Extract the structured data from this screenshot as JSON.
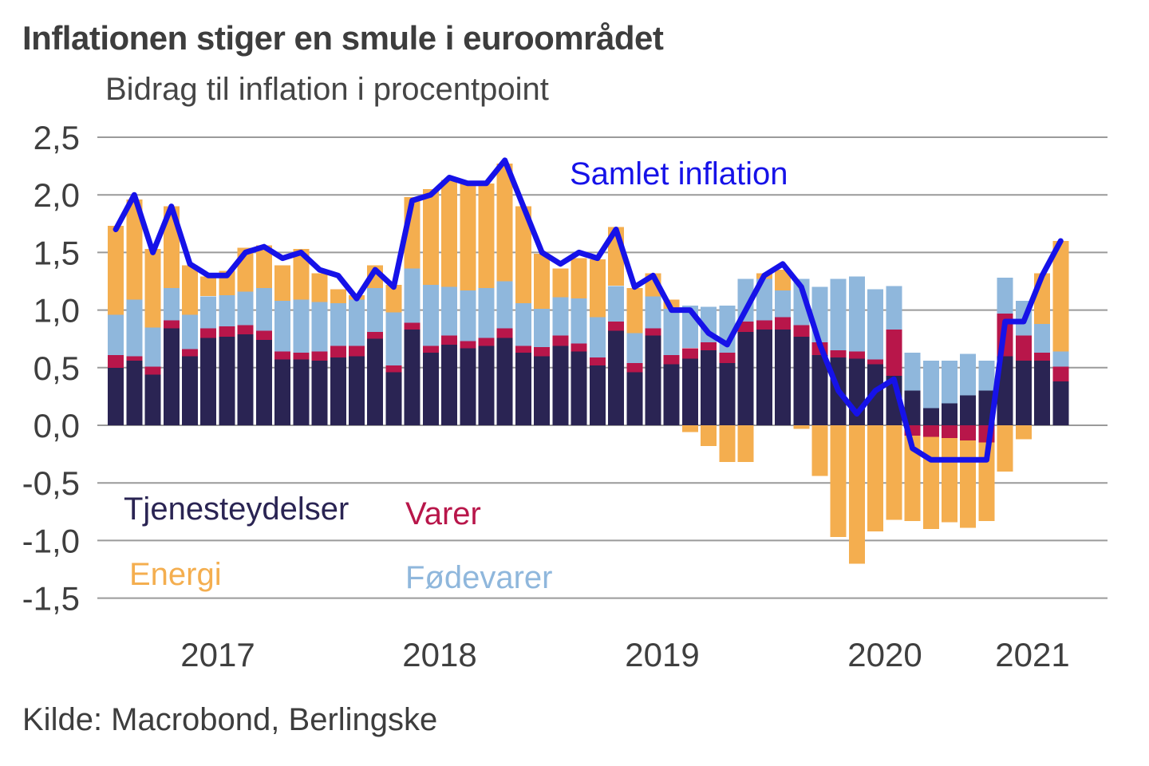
{
  "header": {
    "title": "Inflationen stiger en smule i euroområdet",
    "subtitle": "Bidrag til inflation i procentpoint"
  },
  "footer": {
    "source": "Kilde: Macrobond, Berlingske"
  },
  "legend": {
    "services": "Tjenesteydelser",
    "goods": "Varer",
    "energy": "Energi",
    "food": "Fødevarer"
  },
  "colors": {
    "services": "#2A2453",
    "goods": "#B8164A",
    "food": "#8FB7DC",
    "energy": "#F4AE4F",
    "total_line": "#1612E8",
    "grid": "#9A9A9A",
    "axis_text": "#3f3f3f",
    "background": "#ffffff"
  },
  "chart_data": {
    "type": "bar",
    "stacked": true,
    "title": "Inflationen stiger en smule i euroområdet",
    "subtitle": "Bidrag til inflation i procentpoint",
    "ylabel": "",
    "xlabel": "",
    "ylim": [
      -1.5,
      2.5
    ],
    "grid": true,
    "yticks": [
      2.5,
      2.0,
      1.5,
      1.0,
      0.5,
      0.0,
      -0.5,
      -1.0,
      -1.5
    ],
    "ytick_labels": [
      "2,5",
      "2,0",
      "1,5",
      "1,0",
      "0,5",
      "0,0",
      "-0,5",
      "-1,0",
      "-1,5"
    ],
    "year_labels": [
      "2017",
      "2018",
      "2019",
      "2020",
      "2021"
    ],
    "months": [
      "2017-01",
      "2017-02",
      "2017-03",
      "2017-04",
      "2017-05",
      "2017-06",
      "2017-07",
      "2017-08",
      "2017-09",
      "2017-10",
      "2017-11",
      "2017-12",
      "2018-01",
      "2018-02",
      "2018-03",
      "2018-04",
      "2018-05",
      "2018-06",
      "2018-07",
      "2018-08",
      "2018-09",
      "2018-10",
      "2018-11",
      "2018-12",
      "2019-01",
      "2019-02",
      "2019-03",
      "2019-04",
      "2019-05",
      "2019-06",
      "2019-07",
      "2019-08",
      "2019-09",
      "2019-10",
      "2019-11",
      "2019-12",
      "2020-01",
      "2020-02",
      "2020-03",
      "2020-04",
      "2020-05",
      "2020-06",
      "2020-07",
      "2020-08",
      "2020-09",
      "2020-10",
      "2020-11",
      "2020-12",
      "2021-01",
      "2021-02",
      "2021-03",
      "2021-04"
    ],
    "series": [
      {
        "name": "Tjenesteydelser",
        "key": "services",
        "color": "#2A2453",
        "values": [
          0.5,
          0.56,
          0.44,
          0.84,
          0.6,
          0.76,
          0.77,
          0.79,
          0.74,
          0.57,
          0.57,
          0.56,
          0.59,
          0.6,
          0.75,
          0.46,
          0.83,
          0.63,
          0.7,
          0.67,
          0.69,
          0.76,
          0.63,
          0.6,
          0.69,
          0.64,
          0.52,
          0.82,
          0.46,
          0.78,
          0.53,
          0.58,
          0.65,
          0.54,
          0.81,
          0.83,
          0.83,
          0.77,
          0.61,
          0.59,
          0.58,
          0.53,
          0.43,
          0.3,
          0.15,
          0.19,
          0.26,
          0.3,
          0.6,
          0.56,
          0.56,
          0.38
        ]
      },
      {
        "name": "Varer",
        "key": "goods",
        "color": "#B8164A",
        "values": [
          0.11,
          0.04,
          0.07,
          0.07,
          0.06,
          0.08,
          0.09,
          0.08,
          0.08,
          0.07,
          0.06,
          0.08,
          0.1,
          0.09,
          0.06,
          0.06,
          0.06,
          0.06,
          0.08,
          0.06,
          0.07,
          0.08,
          0.06,
          0.08,
          0.09,
          0.07,
          0.07,
          0.08,
          0.08,
          0.06,
          0.08,
          0.09,
          0.07,
          0.09,
          0.09,
          0.08,
          0.11,
          0.1,
          0.11,
          0.06,
          0.06,
          0.04,
          0.4,
          -0.09,
          -0.1,
          -0.11,
          -0.13,
          -0.15,
          0.37,
          0.22,
          0.07,
          0.13
        ]
      },
      {
        "name": "Fødevarer",
        "key": "food",
        "color": "#8FB7DC",
        "values": [
          0.35,
          0.49,
          0.34,
          0.28,
          0.3,
          0.28,
          0.27,
          0.29,
          0.37,
          0.44,
          0.46,
          0.43,
          0.37,
          0.4,
          0.38,
          0.46,
          0.47,
          0.53,
          0.42,
          0.44,
          0.43,
          0.41,
          0.37,
          0.33,
          0.33,
          0.39,
          0.35,
          0.31,
          0.26,
          0.28,
          0.4,
          0.37,
          0.31,
          0.41,
          0.37,
          0.36,
          0.23,
          0.4,
          0.48,
          0.62,
          0.65,
          0.61,
          0.38,
          0.33,
          0.41,
          0.37,
          0.36,
          0.26,
          0.31,
          0.3,
          0.25,
          0.13
        ]
      },
      {
        "name": "Energi",
        "key": "energy",
        "color": "#F4AE4F",
        "values": [
          0.77,
          0.87,
          0.68,
          0.71,
          0.43,
          0.17,
          0.21,
          0.38,
          0.37,
          0.31,
          0.44,
          0.25,
          0.12,
          0.04,
          0.2,
          0.24,
          0.62,
          0.83,
          0.93,
          0.93,
          0.91,
          1.02,
          0.84,
          0.48,
          0.25,
          0.35,
          0.5,
          0.51,
          0.39,
          0.2,
          0.08,
          -0.06,
          -0.18,
          -0.32,
          -0.32,
          0.05,
          0.18,
          -0.03,
          -0.44,
          -0.97,
          -1.2,
          -0.92,
          -0.82,
          -0.74,
          -0.8,
          -0.73,
          -0.76,
          -0.68,
          -0.4,
          -0.12,
          0.44,
          0.96
        ]
      }
    ],
    "line": {
      "name": "Samlet inflation",
      "color": "#1612E8",
      "values": [
        1.7,
        2.0,
        1.5,
        1.9,
        1.4,
        1.3,
        1.3,
        1.5,
        1.55,
        1.45,
        1.5,
        1.35,
        1.3,
        1.1,
        1.35,
        1.2,
        1.95,
        2.0,
        2.15,
        2.1,
        2.1,
        2.3,
        1.9,
        1.5,
        1.4,
        1.5,
        1.45,
        1.7,
        1.2,
        1.3,
        1.0,
        1.0,
        0.8,
        0.7,
        1.0,
        1.3,
        1.4,
        1.2,
        0.7,
        0.3,
        0.1,
        0.3,
        0.4,
        -0.2,
        -0.3,
        -0.3,
        -0.3,
        -0.3,
        0.9,
        0.9,
        1.3,
        1.6
      ]
    },
    "legend_position": "inside-bottom-left"
  }
}
